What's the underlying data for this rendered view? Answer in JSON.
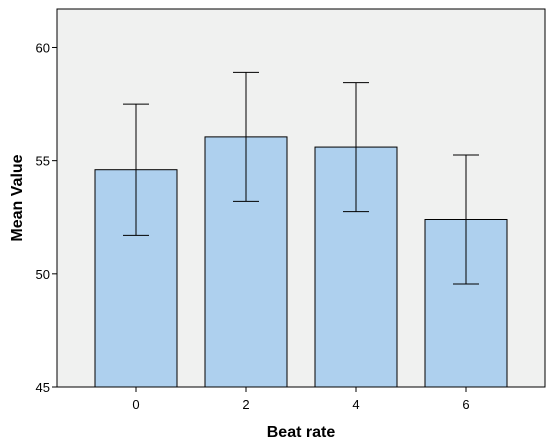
{
  "chart_data": {
    "type": "bar",
    "title": "",
    "xlabel": "Beat rate",
    "ylabel": "Mean Value",
    "categories": [
      "0",
      "2",
      "4",
      "6"
    ],
    "values": [
      54.6,
      56.05,
      55.6,
      52.4
    ],
    "error_low": [
      51.7,
      53.2,
      52.75,
      49.55
    ],
    "error_high": [
      57.5,
      58.9,
      58.45,
      55.25
    ],
    "ylim": [
      45,
      61.7
    ],
    "yticks": [
      45,
      50,
      55,
      60
    ],
    "ytick_labels": [
      "45",
      "50",
      "55",
      "60"
    ],
    "grid": false,
    "colors": {
      "bar_fill": "#aed0ee",
      "bar_stroke": "#000000",
      "plot_background": "#f0f1f0",
      "error_bar": "#000000"
    }
  }
}
